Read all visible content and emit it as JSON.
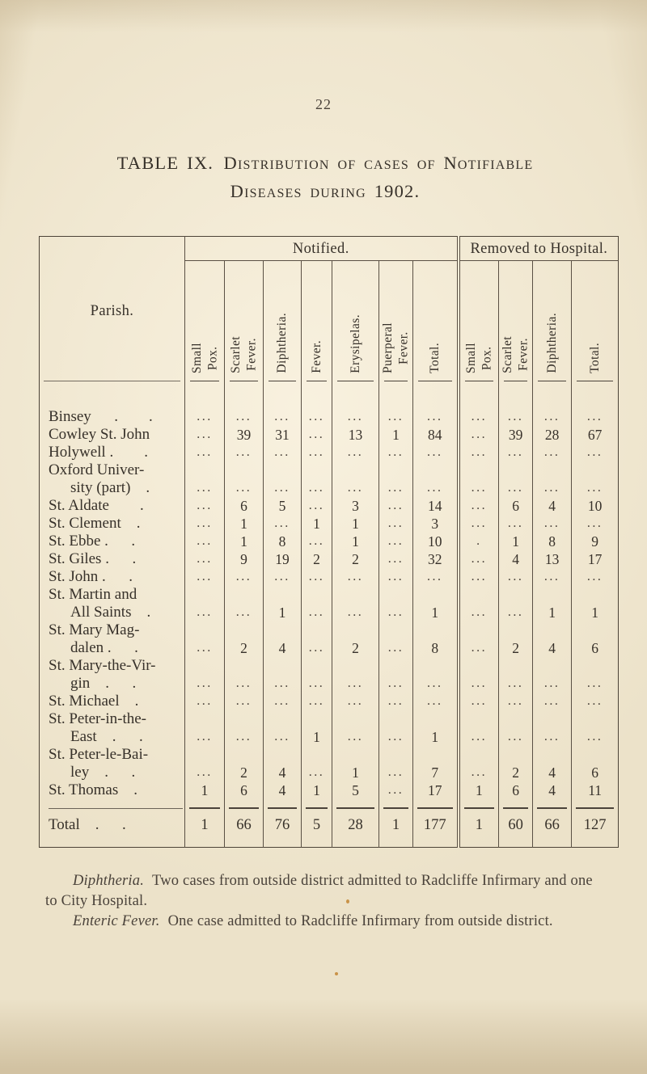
{
  "page": {
    "number": "22"
  },
  "title": {
    "line1": "TABLE IX. Distribution of cases of Notifiable",
    "line2": "Diseases during 1902."
  },
  "table": {
    "group_headers": {
      "parish": "Parish.",
      "notified": "Notified.",
      "removed": "Removed to Hospital."
    },
    "columns": {
      "notified": [
        "Small\nPox.",
        "Scarlet\nFever.",
        "Diphtheria.",
        "Fever.",
        "Erysipelas.",
        "Puerperal\nFever.",
        "Total."
      ],
      "removed": [
        "Small\nPox.",
        "Scarlet\nFever.",
        "Diphtheria.",
        "Total."
      ]
    },
    "rows": [
      {
        "name_lines": [
          "Binsey  .  ."
        ],
        "values": [
          "...",
          "...",
          "...",
          "...",
          "...",
          "...",
          "...",
          "...",
          "...",
          "...",
          "..."
        ]
      },
      {
        "name_lines": [
          "Cowley St. John"
        ],
        "values": [
          "...",
          "39",
          "31",
          "...",
          "13",
          "1",
          "84",
          "...",
          "39",
          "28",
          "67"
        ]
      },
      {
        "name_lines": [
          "Holywell .  ."
        ],
        "values": [
          "...",
          "...",
          "...",
          "...",
          "...",
          "...",
          "...",
          "...",
          "...",
          "...",
          "..."
        ]
      },
      {
        "name_lines": [
          "Oxford Univer-",
          "sity (part) ."
        ],
        "values": [
          "...",
          "...",
          "...",
          "...",
          "...",
          "...",
          "...",
          "...",
          "...",
          "...",
          "..."
        ]
      },
      {
        "name_lines": [
          "St. Aldate  ."
        ],
        "values": [
          "...",
          "6",
          "5",
          "...",
          "3",
          "...",
          "14",
          "...",
          "6",
          "4",
          "10"
        ]
      },
      {
        "name_lines": [
          "St. Clement ."
        ],
        "values": [
          "...",
          "1",
          "...",
          "1",
          "1",
          "...",
          "3",
          "...",
          "...",
          "...",
          "..."
        ]
      },
      {
        "name_lines": [
          "St. Ebbe .  ."
        ],
        "values": [
          "...",
          "1",
          "8",
          "...",
          "1",
          "...",
          "10",
          ".",
          "1",
          "8",
          "9"
        ]
      },
      {
        "name_lines": [
          "St. Giles .  ."
        ],
        "values": [
          "...",
          "9",
          "19",
          "2",
          "2",
          "...",
          "32",
          "...",
          "4",
          "13",
          "17"
        ]
      },
      {
        "name_lines": [
          "St. John .  ."
        ],
        "values": [
          "...",
          "...",
          "...",
          "...",
          "...",
          "...",
          "...",
          "...",
          "...",
          "...",
          "..."
        ]
      },
      {
        "name_lines": [
          "St. Martin and",
          "All Saints ."
        ],
        "values": [
          "...",
          "...",
          "1",
          "...",
          "...",
          "...",
          "1",
          "...",
          "...",
          "1",
          "1"
        ]
      },
      {
        "name_lines": [
          "St. Mary Mag-",
          "dalen .  ."
        ],
        "values": [
          "...",
          "2",
          "4",
          "...",
          "2",
          "...",
          "8",
          "...",
          "2",
          "4",
          "6"
        ]
      },
      {
        "name_lines": [
          "St. Mary-the-Vir-",
          "gin .  ."
        ],
        "values": [
          "...",
          "...",
          "...",
          "...",
          "...",
          "...",
          "...",
          "...",
          "...",
          "...",
          "..."
        ]
      },
      {
        "name_lines": [
          "St. Michael ."
        ],
        "values": [
          "...",
          "...",
          "...",
          "...",
          "...",
          "...",
          "...",
          "...",
          "...",
          "...",
          "..."
        ]
      },
      {
        "name_lines": [
          "St. Peter-in-the-",
          "East .  ."
        ],
        "values": [
          "...",
          "...",
          "...",
          "1",
          "...",
          "...",
          "1",
          "...",
          "...",
          "...",
          "..."
        ]
      },
      {
        "name_lines": [
          "St. Peter-le-Bai-",
          "ley .  ."
        ],
        "values": [
          "...",
          "2",
          "4",
          "...",
          "1",
          "...",
          "7",
          "...",
          "2",
          "4",
          "6"
        ]
      },
      {
        "name_lines": [
          "St. Thomas ."
        ],
        "values": [
          "1",
          "6",
          "4",
          "1",
          "5",
          "...",
          "17",
          "1",
          "6",
          "4",
          "11"
        ]
      }
    ],
    "total_row": {
      "name_lines": [
        "Total .  ."
      ],
      "values": [
        "1",
        "66",
        "76",
        "5",
        "28",
        "1",
        "177",
        "1",
        "60",
        "66",
        "127"
      ]
    }
  },
  "footnotes": [
    {
      "lead": "Diphtheria.",
      "text": "Two cases from outside district admitted to Radcliffe Infirmary and one to City Hospital."
    },
    {
      "lead": "Enteric Fever.",
      "text": "One case admitted to Radcliffe Infirmary from outside district."
    }
  ]
}
